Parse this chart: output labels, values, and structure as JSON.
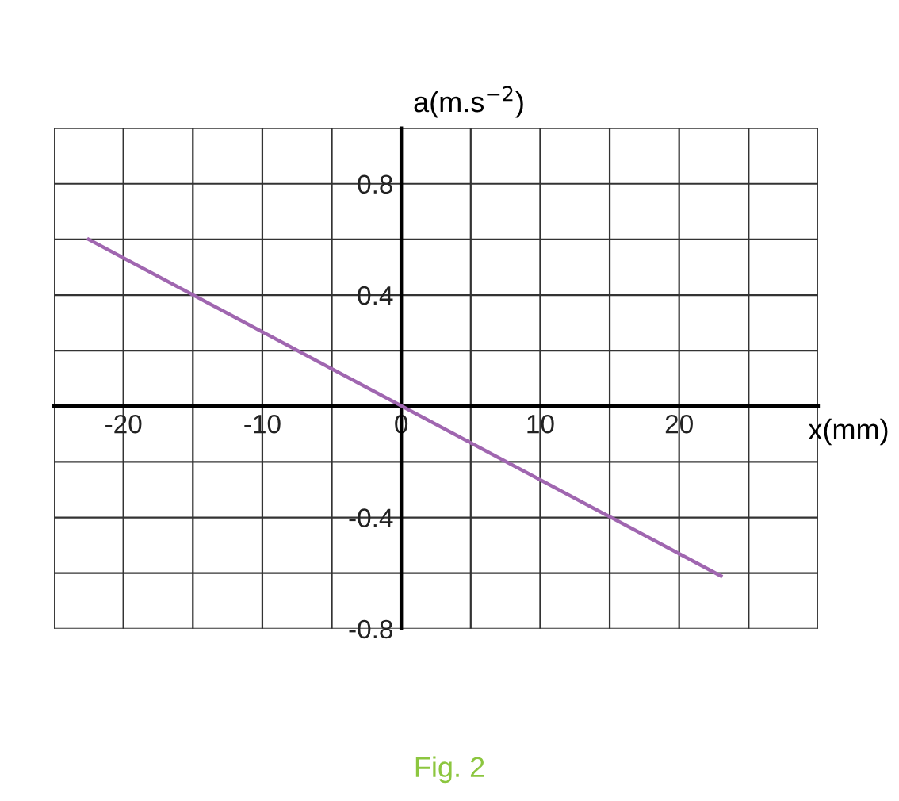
{
  "chart_data": {
    "type": "line",
    "xlabel": "x(mm)",
    "ylabel": "a(m.s$^{−2}$)",
    "x": [
      -22.5,
      23
    ],
    "series": [
      {
        "color": "#a066b0",
        "values": [
          0.6,
          -0.61
        ]
      }
    ],
    "xlim": [
      -25,
      30
    ],
    "ylim": [
      -0.8,
      1.0
    ],
    "xticks": [
      {
        "value": -25,
        "label": null
      },
      -20,
      {
        "value": -15,
        "label": null
      },
      -10,
      {
        "value": -5,
        "label": null
      },
      0,
      {
        "value": 5,
        "label": null
      },
      10,
      {
        "value": 15,
        "label": null
      },
      20,
      {
        "value": 25,
        "label": null
      },
      {
        "value": 30,
        "label": null
      }
    ],
    "yticks": [
      -0.8,
      {
        "value": -0.6,
        "label": null
      },
      -0.4,
      {
        "value": -0.2,
        "label": null
      },
      {
        "value": 0,
        "label": null
      },
      {
        "value": 0.2,
        "label": null
      },
      0.4,
      {
        "value": 0.6,
        "label": null
      },
      0.8,
      {
        "value": 1.0,
        "label": null
      }
    ],
    "grid": true,
    "legend": false,
    "line_style": "solid",
    "marker": "none",
    "annotations": [
      "Fig. 2"
    ]
  }
}
